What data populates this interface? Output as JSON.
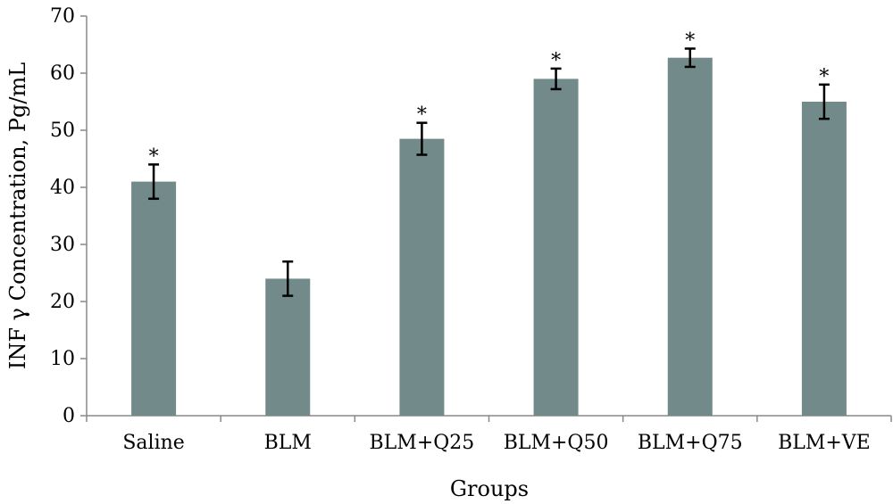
{
  "chart_data": {
    "type": "bar",
    "title": "",
    "xlabel": "Groups",
    "ylabel": "INF γ Concentration, Pg/mL",
    "categories": [
      "Saline",
      "BLM",
      "BLM+Q25",
      "BLM+Q50",
      "BLM+Q75",
      "BLM+VE"
    ],
    "values": [
      41,
      24,
      48.5,
      59,
      62.7,
      55
    ],
    "error": [
      3,
      3,
      2.8,
      1.8,
      1.6,
      3
    ],
    "significance": [
      "*",
      "",
      "*",
      "*",
      "*",
      "*"
    ],
    "ylim": [
      0,
      70
    ],
    "yticks": [
      0,
      10,
      20,
      30,
      40,
      50,
      60,
      70
    ],
    "grid": false,
    "colors": {
      "bar": "#728a8a",
      "axis": "#888888",
      "error_bar": "#000000"
    }
  }
}
